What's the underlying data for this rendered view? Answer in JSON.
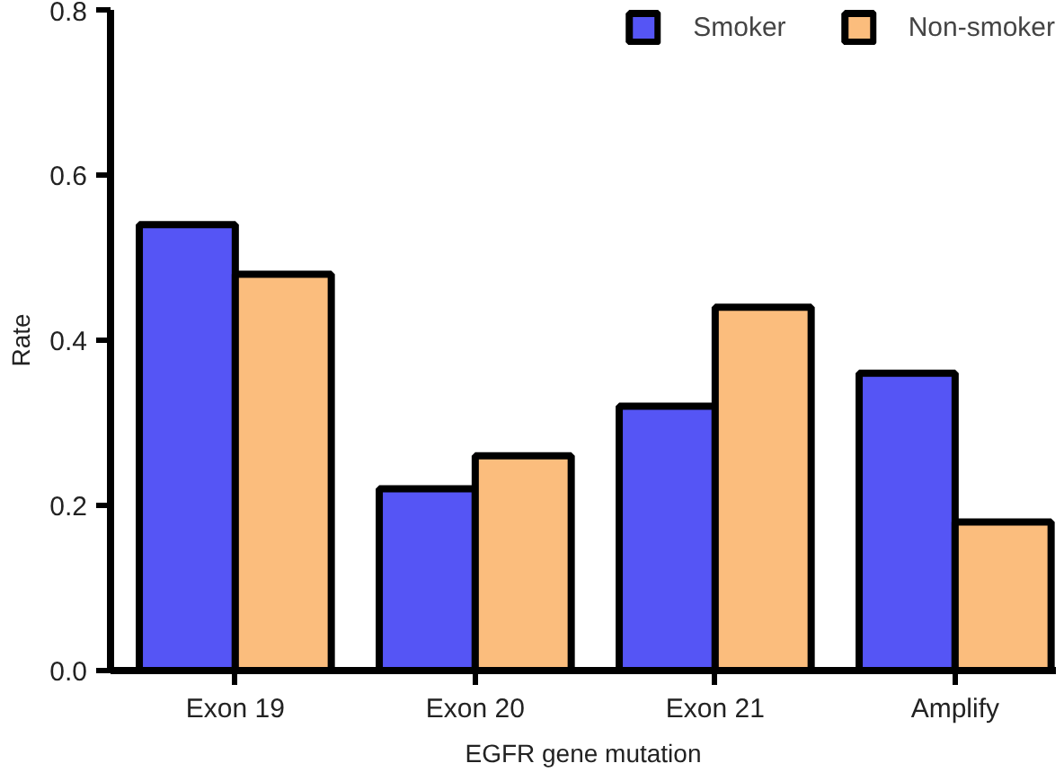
{
  "chart_data": {
    "type": "bar",
    "xlabel": "EGFR gene mutation",
    "ylabel": "Rate",
    "categories": [
      "Exon 19",
      "Exon 20",
      "Exon 21",
      "Amplify"
    ],
    "series": [
      {
        "name": "Smoker",
        "color": "#5555f5",
        "values": [
          0.54,
          0.22,
          0.32,
          0.36
        ]
      },
      {
        "name": "Non-smoker",
        "color": "#fbbd7d",
        "values": [
          0.48,
          0.26,
          0.44,
          0.18
        ]
      }
    ],
    "ylim": [
      0,
      0.8
    ],
    "yticks": [
      {
        "value": 0,
        "label": "0.0"
      },
      0.2,
      0.4,
      0.6,
      0.8
    ],
    "grid": false,
    "legend": "top right"
  }
}
